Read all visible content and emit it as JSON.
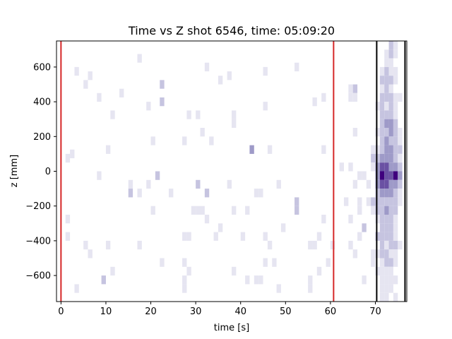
{
  "chart_data": {
    "type": "heatmap",
    "title": "Time vs Z shot 6546, time: 05:09:20",
    "xlabel": "time [s]",
    "ylabel": "z [mm]",
    "xlim": [
      -1,
      77
    ],
    "ylim": [
      -750,
      750
    ],
    "x_ticks": [
      0,
      10,
      20,
      30,
      40,
      50,
      60,
      70
    ],
    "y_ticks": [
      -600,
      -400,
      -200,
      0,
      200,
      400,
      600
    ],
    "x_tick_labels": [
      "0",
      "10",
      "20",
      "30",
      "40",
      "50",
      "60",
      "70"
    ],
    "y_tick_labels": [
      "−600",
      "−400",
      "−200",
      "0",
      "200",
      "400",
      "600"
    ],
    "colormap": "Purples",
    "bin_width_s": 1,
    "bin_height_mm": 50,
    "vertical_lines": [
      {
        "x": 0,
        "color": "#d62728"
      },
      {
        "x": 60.7,
        "color": "#d62728"
      },
      {
        "x": 70.3,
        "color": "#000000"
      },
      {
        "x": 76.6,
        "color": "#000000"
      }
    ],
    "cells": [
      [
        2,
        100,
        1
      ],
      [
        8,
        425,
        1
      ],
      [
        5,
        500,
        1
      ],
      [
        6,
        550,
        1
      ],
      [
        11,
        325,
        1
      ],
      [
        13,
        450,
        1
      ],
      [
        17,
        650,
        1
      ],
      [
        22,
        500,
        2
      ],
      [
        22,
        400,
        2
      ],
      [
        19,
        375,
        1
      ],
      [
        28,
        325,
        1
      ],
      [
        30,
        325,
        1
      ],
      [
        31,
        225,
        1
      ],
      [
        33,
        175,
        1
      ],
      [
        32,
        600,
        1
      ],
      [
        35,
        525,
        1
      ],
      [
        37,
        550,
        1
      ],
      [
        38,
        325,
        1
      ],
      [
        38,
        275,
        1
      ],
      [
        27,
        175,
        1
      ],
      [
        20,
        175,
        1
      ],
      [
        10,
        125,
        1
      ],
      [
        42,
        125,
        3
      ],
      [
        46,
        125,
        1
      ],
      [
        45,
        375,
        1
      ],
      [
        45,
        575,
        1
      ],
      [
        52,
        600,
        1
      ],
      [
        56,
        400,
        1
      ],
      [
        58,
        425,
        1
      ],
      [
        58,
        125,
        1
      ],
      [
        1,
        75,
        1
      ],
      [
        8,
        -25,
        1
      ],
      [
        15,
        -75,
        1
      ],
      [
        17,
        -125,
        1
      ],
      [
        21,
        -25,
        2
      ],
      [
        15,
        -125,
        2
      ],
      [
        19,
        -75,
        1
      ],
      [
        24,
        -125,
        1
      ],
      [
        30,
        -75,
        2
      ],
      [
        32,
        -125,
        2
      ],
      [
        37,
        -75,
        1
      ],
      [
        43,
        -125,
        1
      ],
      [
        44,
        -125,
        1
      ],
      [
        48,
        -75,
        1
      ],
      [
        52,
        -225,
        2
      ],
      [
        52,
        -175,
        2
      ],
      [
        38,
        -225,
        1
      ],
      [
        41,
        -225,
        1
      ],
      [
        20,
        -225,
        1
      ],
      [
        29,
        -225,
        1
      ],
      [
        30,
        -225,
        1
      ],
      [
        31,
        -225,
        1
      ],
      [
        1,
        -275,
        1
      ],
      [
        1,
        -375,
        1
      ],
      [
        5,
        -425,
        1
      ],
      [
        6,
        -475,
        1
      ],
      [
        10,
        -425,
        1
      ],
      [
        17,
        -425,
        1
      ],
      [
        27,
        -375,
        1
      ],
      [
        28,
        -375,
        1
      ],
      [
        32,
        -275,
        1
      ],
      [
        34,
        -375,
        1
      ],
      [
        35,
        -325,
        1
      ],
      [
        40,
        -375,
        1
      ],
      [
        45,
        -375,
        1
      ],
      [
        46,
        -425,
        1
      ],
      [
        49,
        -325,
        1
      ],
      [
        55,
        -425,
        1
      ],
      [
        56,
        -425,
        1
      ],
      [
        57,
        -375,
        1
      ],
      [
        58,
        -275,
        1
      ],
      [
        60,
        -425,
        1
      ],
      [
        9,
        -625,
        2
      ],
      [
        11,
        -575,
        1
      ],
      [
        22,
        -525,
        1
      ],
      [
        27,
        -525,
        1
      ],
      [
        28,
        -575,
        1
      ],
      [
        27,
        -625,
        1
      ],
      [
        38,
        -575,
        1
      ],
      [
        41,
        -625,
        1
      ],
      [
        43,
        -625,
        1
      ],
      [
        44,
        -625,
        1
      ],
      [
        45,
        -525,
        1
      ],
      [
        47,
        -525,
        1
      ],
      [
        55,
        -625,
        1
      ],
      [
        48,
        -675,
        1
      ],
      [
        55,
        -675,
        1
      ],
      [
        3,
        -675,
        1
      ],
      [
        27,
        -675,
        1
      ],
      [
        3,
        575,
        1
      ],
      [
        59,
        -525,
        1
      ],
      [
        57,
        -575,
        1
      ],
      [
        64,
        475,
        1
      ],
      [
        65,
        475,
        2
      ],
      [
        64,
        425,
        1
      ],
      [
        65,
        425,
        1
      ],
      [
        65,
        225,
        1
      ],
      [
        64,
        25,
        1
      ],
      [
        65,
        -75,
        1
      ],
      [
        66,
        -25,
        1
      ],
      [
        67,
        -25,
        1
      ],
      [
        68,
        -75,
        1
      ],
      [
        66,
        -175,
        1
      ],
      [
        66,
        -225,
        1
      ],
      [
        68,
        -175,
        1
      ],
      [
        69,
        -175,
        2
      ],
      [
        69,
        -225,
        1
      ],
      [
        64,
        -275,
        1
      ],
      [
        66,
        -375,
        1
      ],
      [
        67,
        -325,
        2
      ],
      [
        64,
        -425,
        1
      ],
      [
        65,
        -475,
        1
      ],
      [
        69,
        -475,
        1
      ],
      [
        69,
        -525,
        1
      ],
      [
        67,
        -625,
        1
      ],
      [
        69,
        125,
        1
      ],
      [
        69,
        75,
        2
      ],
      [
        69,
        25,
        1
      ],
      [
        62,
        25,
        1
      ],
      [
        63,
        -175,
        1
      ],
      [
        73,
        725,
        2
      ],
      [
        74,
        725,
        1
      ],
      [
        72,
        675,
        1
      ],
      [
        73,
        675,
        2
      ],
      [
        74,
        675,
        1
      ],
      [
        72,
        625,
        1
      ],
      [
        73,
        625,
        1
      ],
      [
        71,
        575,
        1
      ],
      [
        72,
        575,
        2
      ],
      [
        73,
        575,
        1
      ],
      [
        74,
        575,
        1
      ],
      [
        71,
        525,
        2
      ],
      [
        72,
        525,
        2
      ],
      [
        73,
        525,
        2
      ],
      [
        74,
        525,
        1
      ],
      [
        71,
        475,
        1
      ],
      [
        72,
        475,
        2
      ],
      [
        73,
        475,
        1
      ],
      [
        71,
        425,
        2
      ],
      [
        72,
        425,
        2
      ],
      [
        73,
        425,
        2
      ],
      [
        74,
        425,
        1
      ],
      [
        75,
        425,
        1
      ],
      [
        70,
        375,
        1
      ],
      [
        71,
        375,
        2
      ],
      [
        72,
        375,
        1
      ],
      [
        73,
        375,
        2
      ],
      [
        74,
        375,
        1
      ],
      [
        71,
        325,
        2
      ],
      [
        72,
        325,
        2
      ],
      [
        73,
        325,
        2
      ],
      [
        74,
        325,
        1
      ],
      [
        71,
        275,
        2
      ],
      [
        72,
        275,
        3
      ],
      [
        73,
        275,
        3
      ],
      [
        74,
        275,
        2
      ],
      [
        70,
        225,
        1
      ],
      [
        71,
        225,
        2
      ],
      [
        72,
        225,
        2
      ],
      [
        73,
        225,
        3
      ],
      [
        74,
        225,
        2
      ],
      [
        75,
        225,
        1
      ],
      [
        71,
        175,
        2
      ],
      [
        72,
        175,
        3
      ],
      [
        73,
        175,
        2
      ],
      [
        74,
        175,
        2
      ],
      [
        75,
        175,
        1
      ],
      [
        70,
        125,
        1
      ],
      [
        71,
        125,
        2
      ],
      [
        72,
        125,
        3
      ],
      [
        73,
        125,
        3
      ],
      [
        74,
        125,
        2
      ],
      [
        75,
        125,
        2
      ],
      [
        70,
        75,
        2
      ],
      [
        71,
        75,
        3
      ],
      [
        72,
        75,
        3
      ],
      [
        73,
        75,
        3
      ],
      [
        74,
        75,
        2
      ],
      [
        75,
        75,
        1
      ],
      [
        70,
        25,
        3
      ],
      [
        71,
        25,
        4
      ],
      [
        72,
        25,
        4
      ],
      [
        73,
        25,
        3
      ],
      [
        74,
        25,
        3
      ],
      [
        75,
        25,
        2
      ],
      [
        70,
        -25,
        3
      ],
      [
        71,
        -25,
        5
      ],
      [
        72,
        -25,
        4
      ],
      [
        73,
        -25,
        4
      ],
      [
        74,
        -25,
        5
      ],
      [
        75,
        -25,
        3
      ],
      [
        70,
        -75,
        3
      ],
      [
        71,
        -75,
        4
      ],
      [
        72,
        -75,
        4
      ],
      [
        73,
        -75,
        3
      ],
      [
        74,
        -75,
        3
      ],
      [
        75,
        -75,
        2
      ],
      [
        70,
        -125,
        2
      ],
      [
        71,
        -125,
        3
      ],
      [
        72,
        -125,
        3
      ],
      [
        73,
        -125,
        3
      ],
      [
        74,
        -125,
        2
      ],
      [
        75,
        -125,
        1
      ],
      [
        70,
        -175,
        2
      ],
      [
        71,
        -175,
        2
      ],
      [
        72,
        -175,
        2
      ],
      [
        73,
        -175,
        2
      ],
      [
        74,
        -175,
        2
      ],
      [
        75,
        -175,
        1
      ],
      [
        70,
        -225,
        2
      ],
      [
        71,
        -225,
        2
      ],
      [
        72,
        -225,
        3
      ],
      [
        73,
        -225,
        2
      ],
      [
        74,
        -225,
        2
      ],
      [
        70,
        -275,
        1
      ],
      [
        71,
        -275,
        2
      ],
      [
        72,
        -275,
        2
      ],
      [
        73,
        -275,
        2
      ],
      [
        74,
        -275,
        1
      ],
      [
        71,
        -325,
        2
      ],
      [
        72,
        -325,
        2
      ],
      [
        73,
        -325,
        2
      ],
      [
        74,
        -325,
        1
      ],
      [
        70,
        -375,
        2
      ],
      [
        71,
        -375,
        2
      ],
      [
        72,
        -375,
        2
      ],
      [
        73,
        -375,
        2
      ],
      [
        74,
        -375,
        1
      ],
      [
        71,
        -425,
        2
      ],
      [
        72,
        -425,
        1
      ],
      [
        73,
        -425,
        2
      ],
      [
        74,
        -425,
        2
      ],
      [
        75,
        -425,
        1
      ],
      [
        70,
        -475,
        1
      ],
      [
        71,
        -475,
        2
      ],
      [
        72,
        -475,
        2
      ],
      [
        73,
        -475,
        1
      ],
      [
        74,
        -475,
        1
      ],
      [
        71,
        -525,
        1
      ],
      [
        72,
        -525,
        2
      ],
      [
        73,
        -525,
        2
      ],
      [
        74,
        -525,
        1
      ],
      [
        70,
        -575,
        1
      ],
      [
        71,
        -575,
        1
      ],
      [
        72,
        -575,
        1
      ],
      [
        73,
        -575,
        1
      ],
      [
        71,
        -625,
        1
      ],
      [
        72,
        -625,
        1
      ],
      [
        73,
        -625,
        1
      ],
      [
        74,
        -625,
        1
      ],
      [
        71,
        -675,
        1
      ],
      [
        72,
        -675,
        1
      ],
      [
        73,
        -675,
        1
      ],
      [
        71,
        -725,
        1
      ],
      [
        72,
        -725,
        1
      ],
      [
        74,
        -725,
        1
      ]
    ]
  }
}
